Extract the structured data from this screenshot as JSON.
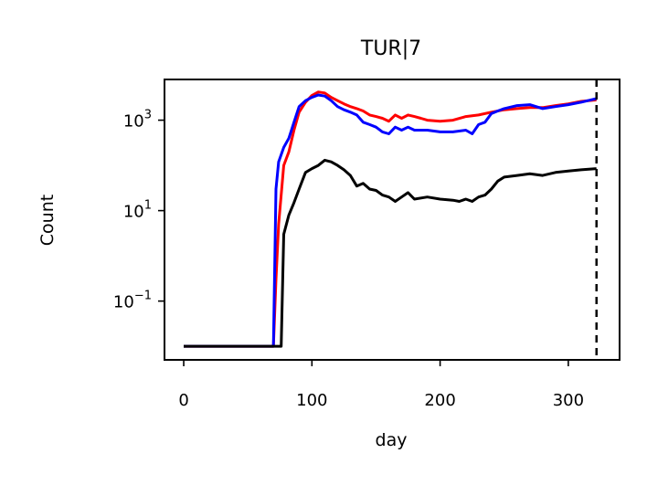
{
  "chart_data": {
    "type": "line",
    "title": "TUR|7",
    "xlabel": "day",
    "ylabel": "Count",
    "xlim": [
      -15,
      340
    ],
    "ylim_log10": [
      -2.3,
      3.9
    ],
    "yscale": "log",
    "grid": false,
    "x_ticks": [
      {
        "value": 0,
        "label": "0"
      },
      {
        "value": 100,
        "label": "100"
      },
      {
        "value": 200,
        "label": "200"
      },
      {
        "value": 300,
        "label": "300"
      }
    ],
    "y_ticks": [
      {
        "exp": -1,
        "base": "10",
        "sup": "−1"
      },
      {
        "exp": 1,
        "base": "10",
        "sup": "1"
      },
      {
        "exp": 3,
        "base": "10",
        "sup": "3"
      }
    ],
    "vline": {
      "x": 322,
      "style": "dashed",
      "color": "#000000"
    },
    "series": [
      {
        "color": "#ff0000",
        "points": [
          [
            0,
            0.01
          ],
          [
            70,
            0.01
          ],
          [
            72,
            0.3
          ],
          [
            74,
            5
          ],
          [
            78,
            100
          ],
          [
            82,
            200
          ],
          [
            86,
            600
          ],
          [
            90,
            1500
          ],
          [
            95,
            2500
          ],
          [
            100,
            3500
          ],
          [
            105,
            4200
          ],
          [
            110,
            4000
          ],
          [
            115,
            3200
          ],
          [
            120,
            2700
          ],
          [
            125,
            2300
          ],
          [
            130,
            2000
          ],
          [
            135,
            1800
          ],
          [
            140,
            1600
          ],
          [
            145,
            1300
          ],
          [
            150,
            1200
          ],
          [
            155,
            1100
          ],
          [
            160,
            950
          ],
          [
            165,
            1300
          ],
          [
            170,
            1100
          ],
          [
            175,
            1300
          ],
          [
            180,
            1200
          ],
          [
            185,
            1100
          ],
          [
            190,
            1000
          ],
          [
            200,
            950
          ],
          [
            210,
            1000
          ],
          [
            220,
            1200
          ],
          [
            230,
            1300
          ],
          [
            240,
            1500
          ],
          [
            250,
            1700
          ],
          [
            260,
            1800
          ],
          [
            270,
            1900
          ],
          [
            280,
            1900
          ],
          [
            290,
            2100
          ],
          [
            300,
            2300
          ],
          [
            310,
            2600
          ],
          [
            322,
            2800
          ]
        ]
      },
      {
        "color": "#0000ff",
        "points": [
          [
            0,
            0.01
          ],
          [
            70,
            0.01
          ],
          [
            72,
            30
          ],
          [
            74,
            120
          ],
          [
            78,
            250
          ],
          [
            82,
            400
          ],
          [
            86,
            900
          ],
          [
            90,
            2000
          ],
          [
            95,
            2700
          ],
          [
            100,
            3200
          ],
          [
            105,
            3600
          ],
          [
            110,
            3400
          ],
          [
            115,
            2700
          ],
          [
            120,
            2000
          ],
          [
            125,
            1700
          ],
          [
            130,
            1500
          ],
          [
            135,
            1300
          ],
          [
            140,
            900
          ],
          [
            145,
            800
          ],
          [
            150,
            700
          ],
          [
            155,
            550
          ],
          [
            160,
            500
          ],
          [
            165,
            700
          ],
          [
            170,
            600
          ],
          [
            175,
            700
          ],
          [
            180,
            600
          ],
          [
            190,
            600
          ],
          [
            200,
            550
          ],
          [
            210,
            550
          ],
          [
            220,
            600
          ],
          [
            225,
            500
          ],
          [
            230,
            800
          ],
          [
            235,
            900
          ],
          [
            240,
            1400
          ],
          [
            245,
            1600
          ],
          [
            250,
            1800
          ],
          [
            260,
            2100
          ],
          [
            270,
            2200
          ],
          [
            280,
            1800
          ],
          [
            290,
            2000
          ],
          [
            300,
            2200
          ],
          [
            310,
            2500
          ],
          [
            322,
            3000
          ]
        ]
      },
      {
        "color": "#000000",
        "points": [
          [
            0,
            0.01
          ],
          [
            76,
            0.01
          ],
          [
            78,
            3
          ],
          [
            82,
            8
          ],
          [
            86,
            15
          ],
          [
            90,
            30
          ],
          [
            95,
            70
          ],
          [
            100,
            85
          ],
          [
            105,
            100
          ],
          [
            110,
            130
          ],
          [
            115,
            120
          ],
          [
            120,
            100
          ],
          [
            125,
            80
          ],
          [
            130,
            60
          ],
          [
            135,
            35
          ],
          [
            140,
            40
          ],
          [
            145,
            30
          ],
          [
            150,
            28
          ],
          [
            155,
            22
          ],
          [
            160,
            20
          ],
          [
            165,
            16
          ],
          [
            170,
            20
          ],
          [
            175,
            25
          ],
          [
            180,
            18
          ],
          [
            190,
            20
          ],
          [
            200,
            18
          ],
          [
            210,
            17
          ],
          [
            215,
            16
          ],
          [
            220,
            18
          ],
          [
            225,
            16
          ],
          [
            230,
            20
          ],
          [
            235,
            22
          ],
          [
            240,
            30
          ],
          [
            245,
            45
          ],
          [
            250,
            55
          ],
          [
            260,
            60
          ],
          [
            270,
            65
          ],
          [
            280,
            60
          ],
          [
            290,
            70
          ],
          [
            300,
            75
          ],
          [
            310,
            80
          ],
          [
            322,
            85
          ]
        ]
      }
    ]
  }
}
